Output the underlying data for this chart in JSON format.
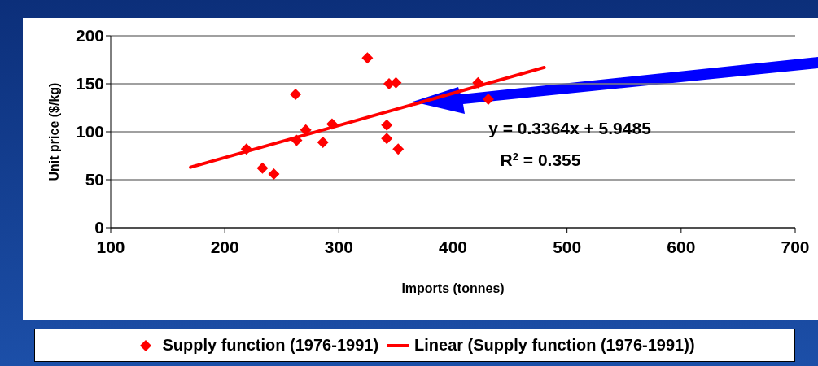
{
  "chart_data": {
    "type": "scatter",
    "xlabel": "Imports (tonnes)",
    "ylabel": "Unit price ($/kg)",
    "xlim": [
      100,
      700
    ],
    "xticks": [
      100,
      200,
      300,
      400,
      500,
      600,
      700
    ],
    "ylim": [
      0,
      200
    ],
    "yticks": [
      0,
      50,
      100,
      150,
      200
    ],
    "grid": "y",
    "legend": "bottom",
    "series": [
      {
        "name": "Supply function (1976-1991)",
        "color": "#ff0000",
        "marker": "diamond",
        "x": [
          219,
          233,
          243,
          262,
          263,
          271,
          286,
          294,
          325,
          344,
          350,
          342,
          342,
          352,
          422,
          431
        ],
        "values": [
          82,
          62,
          56,
          139,
          91,
          102,
          89,
          108,
          177,
          150,
          151,
          107,
          93,
          82,
          151,
          134
        ]
      },
      {
        "name": "Linear (Supply function (1976-1991))",
        "color": "#ff0000",
        "type": "line",
        "x": [
          170,
          480
        ],
        "values": [
          63,
          167
        ]
      }
    ],
    "annotations": [
      "y = 0.3364x + 5.9485",
      "R$^{2}$ = 0.355"
    ]
  }
}
